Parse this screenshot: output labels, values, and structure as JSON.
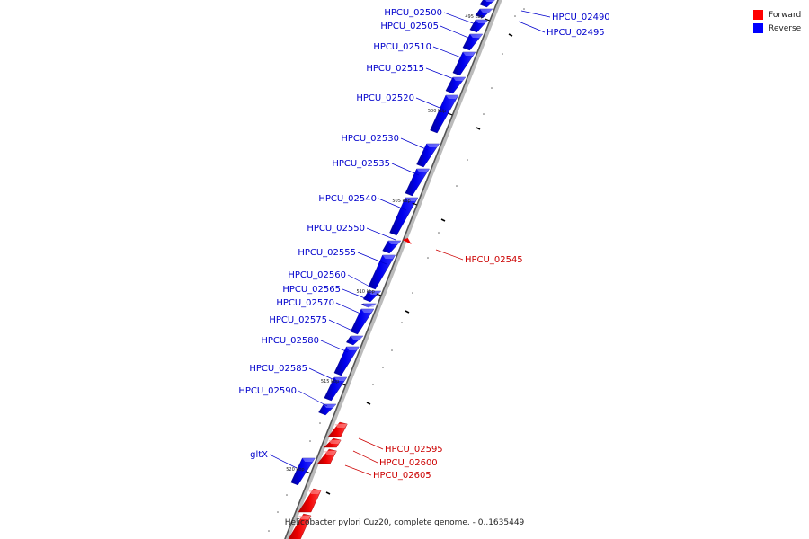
{
  "legend": [
    {
      "label": "Forward",
      "color": "#ff0000"
    },
    {
      "label": "Reverse",
      "color": "#0000ff"
    }
  ],
  "caption": "Helicobacter pylori Cuz20, complete genome. - 0..1635449",
  "ticks": [
    "495 kbp",
    "500 kbp",
    "505 kbp",
    "510 kbp",
    "515 kbp",
    "520 kbp"
  ],
  "genes": [
    {
      "name": "HPCU_02490",
      "strand": "reverse"
    },
    {
      "name": "HPCU_02495",
      "strand": "reverse"
    },
    {
      "name": "HPCU_02500",
      "strand": "reverse"
    },
    {
      "name": "HPCU_02505",
      "strand": "reverse"
    },
    {
      "name": "HPCU_02510",
      "strand": "reverse"
    },
    {
      "name": "HPCU_02515",
      "strand": "reverse"
    },
    {
      "name": "HPCU_02520",
      "strand": "reverse"
    },
    {
      "name": "HPCU_02530",
      "strand": "reverse"
    },
    {
      "name": "HPCU_02535",
      "strand": "reverse"
    },
    {
      "name": "HPCU_02540",
      "strand": "reverse"
    },
    {
      "name": "HPCU_02545",
      "strand": "forward"
    },
    {
      "name": "HPCU_02550",
      "strand": "reverse"
    },
    {
      "name": "HPCU_02555",
      "strand": "reverse"
    },
    {
      "name": "HPCU_02560",
      "strand": "reverse"
    },
    {
      "name": "HPCU_02565",
      "strand": "reverse"
    },
    {
      "name": "HPCU_02570",
      "strand": "reverse"
    },
    {
      "name": "HPCU_02575",
      "strand": "reverse"
    },
    {
      "name": "HPCU_02580",
      "strand": "reverse"
    },
    {
      "name": "HPCU_02585",
      "strand": "reverse"
    },
    {
      "name": "HPCU_02590",
      "strand": "reverse"
    },
    {
      "name": "HPCU_02595",
      "strand": "forward"
    },
    {
      "name": "HPCU_02600",
      "strand": "forward"
    },
    {
      "name": "HPCU_02605",
      "strand": "forward"
    },
    {
      "name": "gltX",
      "strand": "reverse"
    }
  ]
}
